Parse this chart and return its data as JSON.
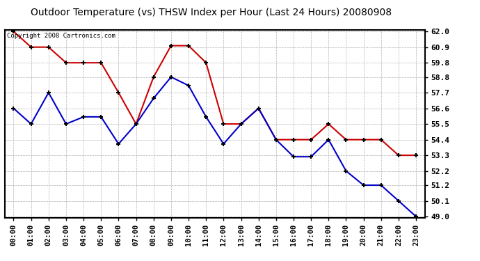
{
  "title": "Outdoor Temperature (vs) THSW Index per Hour (Last 24 Hours) 20080908",
  "copyright": "Copyright 2008 Cartronics.com",
  "hours": [
    "00:00",
    "01:00",
    "02:00",
    "03:00",
    "04:00",
    "05:00",
    "06:00",
    "07:00",
    "08:00",
    "09:00",
    "10:00",
    "11:00",
    "12:00",
    "13:00",
    "14:00",
    "15:00",
    "16:00",
    "17:00",
    "18:00",
    "19:00",
    "20:00",
    "21:00",
    "22:00",
    "23:00"
  ],
  "red_data": [
    62.0,
    60.9,
    60.9,
    59.8,
    59.8,
    59.8,
    57.7,
    55.5,
    58.8,
    61.0,
    61.0,
    59.8,
    55.5,
    55.5,
    56.6,
    54.4,
    54.4,
    54.4,
    55.5,
    54.4,
    54.4,
    54.4,
    53.3,
    53.3
  ],
  "blue_data": [
    56.6,
    55.5,
    57.7,
    55.5,
    56.0,
    56.0,
    54.1,
    55.5,
    57.3,
    58.8,
    58.2,
    56.0,
    54.1,
    55.5,
    56.6,
    54.4,
    53.2,
    53.2,
    54.4,
    52.2,
    51.2,
    51.2,
    50.1,
    49.0
  ],
  "ylim": [
    49.0,
    62.0
  ],
  "yticks": [
    49.0,
    50.1,
    51.2,
    52.2,
    53.3,
    54.4,
    55.5,
    56.6,
    57.7,
    58.8,
    59.8,
    60.9,
    62.0
  ],
  "red_color": "#cc0000",
  "blue_color": "#0000cc",
  "bg_color": "#ffffff",
  "grid_color": "#aaaaaa",
  "title_fontsize": 10,
  "copyright_fontsize": 6.5
}
